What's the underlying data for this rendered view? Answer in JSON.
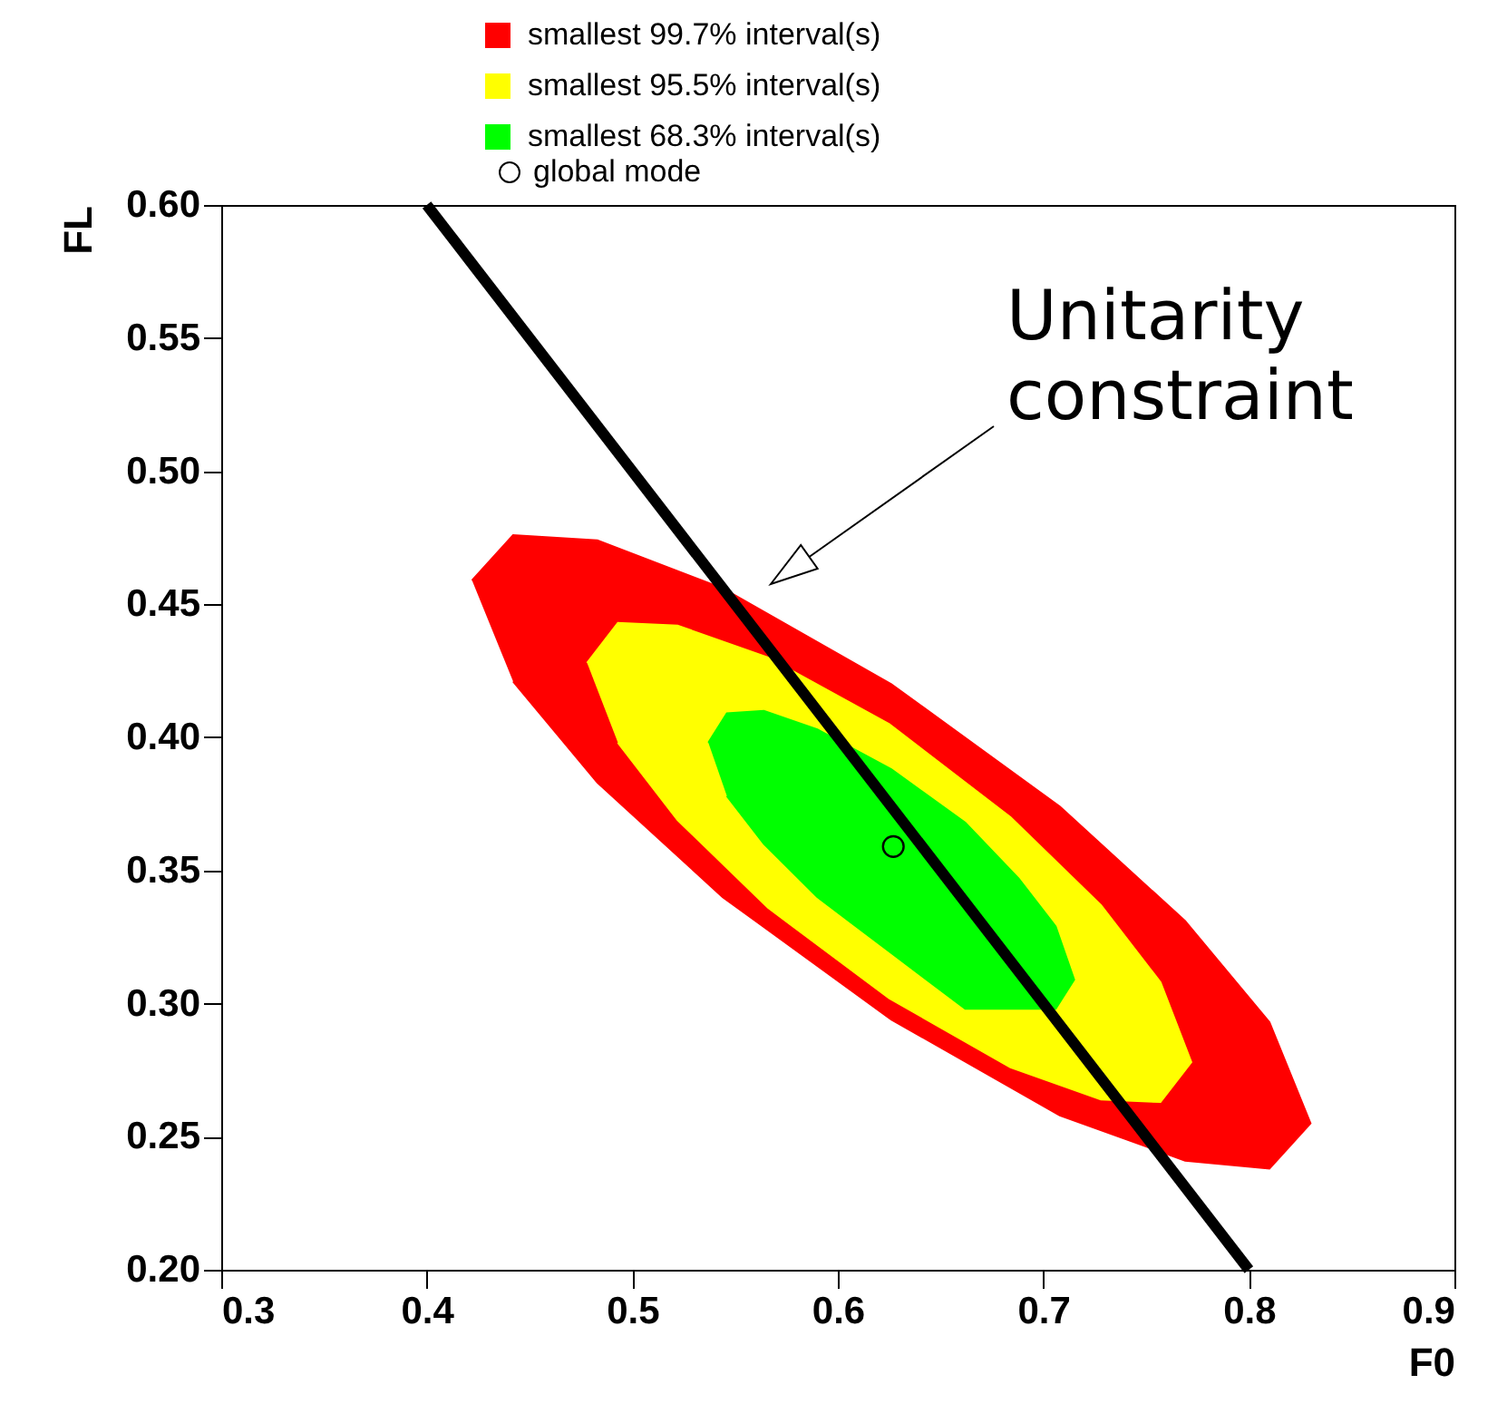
{
  "chart_data": {
    "type": "area",
    "xlabel": "F0",
    "ylabel": "FL",
    "xlim": [
      0.3,
      0.9
    ],
    "ylim": [
      0.2,
      0.6
    ],
    "xticks": [
      0.3,
      0.4,
      0.5,
      0.6,
      0.7,
      0.8,
      0.9
    ],
    "yticks": [
      {
        "value": 0.2,
        "label": "0.20"
      },
      0.25,
      {
        "value": 0.3,
        "label": "0.30"
      },
      0.35,
      {
        "value": 0.4,
        "label": "0.40"
      },
      0.45,
      {
        "value": 0.5,
        "label": "0.50"
      },
      0.55,
      {
        "value": 0.6,
        "label": "0.60"
      }
    ],
    "grid": false,
    "legend": "top",
    "series": [
      {
        "name": "smallest 99.7% interval(s)",
        "color": "#ff0000",
        "x": [
          0.422,
          0.442,
          0.483,
          0.544,
          0.626,
          0.708,
          0.769,
          0.81,
          0.83,
          0.81,
          0.769,
          0.708,
          0.626,
          0.544,
          0.483,
          0.442
        ],
        "values": [
          0.459,
          0.476,
          0.474,
          0.456,
          0.42,
          0.374,
          0.331,
          0.293,
          0.255,
          0.238,
          0.241,
          0.258,
          0.294,
          0.34,
          0.383,
          0.421
        ]
      },
      {
        "name": "smallest 95.5% interval(s)",
        "color": "#ffff00",
        "x": [
          0.478,
          0.493,
          0.522,
          0.566,
          0.625,
          0.684,
          0.728,
          0.757,
          0.772,
          0.757,
          0.728,
          0.684,
          0.625,
          0.566,
          0.522,
          0.493
        ],
        "values": [
          0.428,
          0.443,
          0.442,
          0.43,
          0.405,
          0.37,
          0.337,
          0.308,
          0.278,
          0.263,
          0.264,
          0.276,
          0.302,
          0.336,
          0.369,
          0.398
        ]
      },
      {
        "name": "smallest 68.3% interval(s)",
        "color": "#00ff00",
        "x": [
          0.537,
          0.546,
          0.564,
          0.59,
          0.626,
          0.662,
          0.688,
          0.706,
          0.715,
          0.706,
          0.688,
          0.662,
          0.626,
          0.59,
          0.564,
          0.546
        ],
        "values": [
          0.398,
          0.409,
          0.41,
          0.403,
          0.388,
          0.368,
          0.347,
          0.329,
          0.309,
          0.298,
          0.298,
          0.298,
          0.319,
          0.34,
          0.36,
          0.378
        ]
      },
      {
        "name": "global mode",
        "color": "#000000",
        "type": "scatter",
        "marker": "circle",
        "x": [
          0.627
        ],
        "values": [
          0.359
        ]
      },
      {
        "color": "#000000",
        "type": "line",
        "x": [
          0.4,
          0.8
        ],
        "values": [
          0.6,
          0.2
        ]
      }
    ],
    "annotations": [
      "Unitarity constraint"
    ]
  }
}
